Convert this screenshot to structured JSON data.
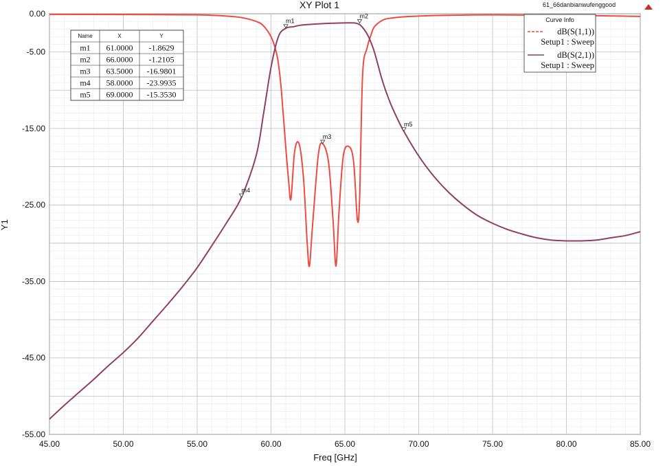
{
  "chart_data": {
    "type": "line",
    "title": "XY Plot 1",
    "project_label": "61_66danbianwufenggood",
    "xlabel": "Freq [GHz]",
    "ylabel": "Y1",
    "xlim": [
      45,
      85
    ],
    "ylim": [
      -55,
      0
    ],
    "x_ticks": [
      "45.00",
      "50.00",
      "55.00",
      "60.00",
      "65.00",
      "70.00",
      "75.00",
      "80.00",
      "85.00"
    ],
    "y_ticks": [
      "0.00",
      "-5.00",
      "-15.00",
      "-25.00",
      "-35.00",
      "-45.00",
      "-55.00"
    ],
    "grid": "on",
    "legend": {
      "title": "Curve Info",
      "placement": "top-right",
      "entries": [
        {
          "name": "dB(S(1,1))",
          "sub": "Setup1 : Sweep",
          "style": "dashed",
          "color": "#ee4a42"
        },
        {
          "name": "dB(S(2,1))",
          "sub": "Setup1 : Sweep",
          "style": "solid",
          "color": "#8f3f62"
        }
      ]
    },
    "marker_table": {
      "headers": [
        "Name",
        "X",
        "Y"
      ],
      "rows": [
        [
          "m1",
          "61.0000",
          "-1.8629"
        ],
        [
          "m2",
          "66.0000",
          "-1.2105"
        ],
        [
          "m3",
          "63.5000",
          "-16.9801"
        ],
        [
          "m4",
          "58.0000",
          "-23.9935"
        ],
        [
          "m5",
          "69.0000",
          "-15.3530"
        ]
      ]
    },
    "markers": [
      {
        "name": "m1",
        "x": 61.0,
        "y": -1.8629
      },
      {
        "name": "m2",
        "x": 66.0,
        "y": -1.2105
      },
      {
        "name": "m3",
        "x": 63.5,
        "y": -16.9801
      },
      {
        "name": "m4",
        "x": 58.0,
        "y": -23.9935
      },
      {
        "name": "m5",
        "x": 69.0,
        "y": -15.353
      }
    ],
    "series": [
      {
        "name": "dB(S(1,1))",
        "color": "#ee4a42",
        "x": [
          45,
          50,
          55,
          56,
          57,
          58,
          59,
          59.5,
          60,
          60.3,
          60.5,
          60.7,
          61,
          61.2,
          61.35,
          61.6,
          61.9,
          62.2,
          62.45,
          62.6,
          62.8,
          63.2,
          63.5,
          63.9,
          64.2,
          64.4,
          64.6,
          64.9,
          65.3,
          65.6,
          65.85,
          66.0,
          66.2,
          66.5,
          66.8,
          67,
          67.5,
          68,
          69,
          70,
          72,
          75,
          80,
          85
        ],
        "y": [
          -0.08,
          -0.1,
          -0.15,
          -0.2,
          -0.3,
          -0.5,
          -1.0,
          -1.6,
          -3.0,
          -4.6,
          -6.5,
          -10.0,
          -17.5,
          -22.0,
          -24.2,
          -18.0,
          -17.0,
          -21.5,
          -30.0,
          -33.0,
          -28.0,
          -18.5,
          -17.0,
          -19.5,
          -27.0,
          -33.0,
          -26.0,
          -18.5,
          -17.4,
          -19.5,
          -27.0,
          -24.0,
          -8.0,
          -4.5,
          -2.6,
          -1.7,
          -0.9,
          -0.6,
          -0.4,
          -0.3,
          -0.2,
          -0.15,
          -0.2,
          -0.35
        ]
      },
      {
        "name": "dB(S(2,1))",
        "color": "#8f3f62",
        "x": [
          45,
          46,
          47,
          48,
          49,
          50,
          51,
          52,
          53,
          54,
          55,
          56,
          57,
          58,
          59,
          59.5,
          60,
          60.5,
          61,
          61.5,
          62,
          63,
          64,
          65,
          65.8,
          66.2,
          66.6,
          67,
          67.5,
          68,
          68.5,
          69,
          70,
          71,
          72,
          73,
          74,
          75,
          76,
          77,
          78,
          79,
          80,
          80.5,
          81,
          82,
          83,
          84,
          85
        ],
        "y": [
          -53.0,
          -51.2,
          -49.5,
          -47.8,
          -46.0,
          -44.3,
          -42.4,
          -40.2,
          -38.0,
          -35.7,
          -33.2,
          -30.3,
          -27.3,
          -24.0,
          -18.5,
          -13.0,
          -7.0,
          -3.0,
          -1.9,
          -1.7,
          -1.5,
          -1.35,
          -1.25,
          -1.2,
          -1.25,
          -1.8,
          -3.0,
          -5.0,
          -8.5,
          -11.3,
          -13.5,
          -15.4,
          -18.6,
          -21.2,
          -23.3,
          -25.0,
          -26.4,
          -27.4,
          -28.2,
          -28.8,
          -29.3,
          -29.6,
          -29.7,
          -29.7,
          -29.7,
          -29.6,
          -29.3,
          -29.0,
          -28.5
        ]
      }
    ]
  }
}
